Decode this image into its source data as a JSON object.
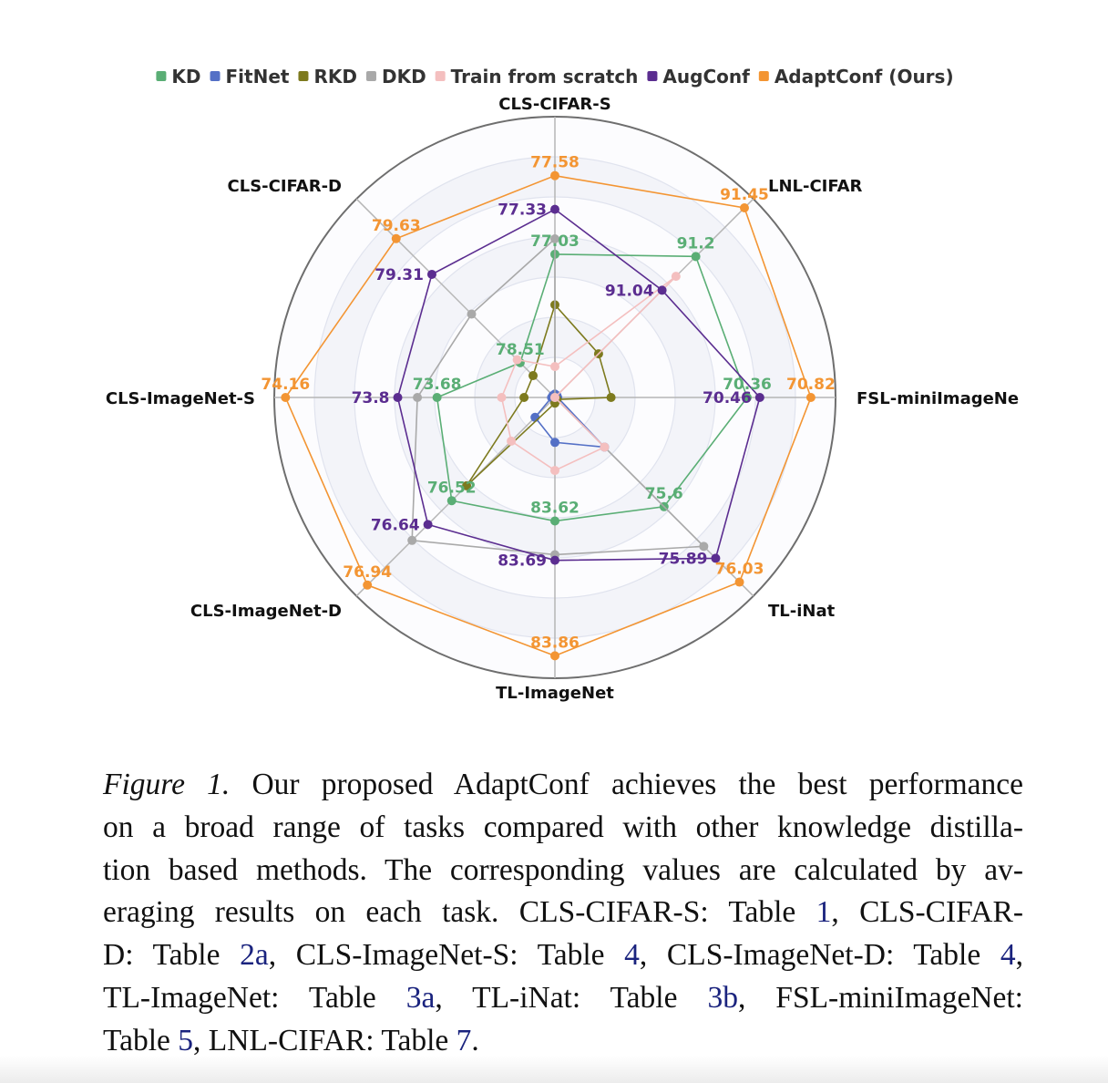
{
  "chart_data": {
    "type": "radar",
    "grid": true,
    "legend_position": "top",
    "axes": [
      "CLS-CIFAR-S",
      "LNL-CIFAR",
      "FSL-miniImageNe",
      "TL-iNat",
      "TL-ImageNet",
      "CLS-ImageNet-D",
      "CLS-ImageNet-S",
      "CLS-CIFAR-D"
    ],
    "series": [
      {
        "name": "KD",
        "color": "#5aae75",
        "values": [
          "77.03",
          "91.2",
          "70.36",
          "75.6",
          "83.62",
          "76.52",
          "73.68",
          "78.51"
        ],
        "relative_score": [
          0.51,
          0.71,
          0.685,
          0.55,
          0.44,
          0.52,
          0.42,
          0.175
        ]
      },
      {
        "name": "FitNet",
        "color": "#5470c6",
        "relative_score": [
          0.012,
          0.01,
          0.01,
          0.25,
          0.16,
          0.1,
          0.012,
          0.01
        ]
      },
      {
        "name": "RKD",
        "color": "#7d7a1e",
        "relative_score": [
          0.33,
          0.22,
          0.2,
          0.01,
          0.02,
          0.445,
          0.11,
          0.11
        ]
      },
      {
        "name": "DKD",
        "color": "#a9a9a9",
        "relative_score": [
          0.565,
          0.0,
          0.0,
          0.75,
          0.56,
          0.72,
          0.49,
          0.42
        ]
      },
      {
        "name": "Train from scratch",
        "color": "#f4bfbf",
        "relative_score": [
          0.11,
          0.61,
          0.0,
          0.25,
          0.26,
          0.22,
          0.19,
          0.19
        ]
      },
      {
        "name": "AugConf",
        "color": "#5b2d90",
        "values": [
          "77.33",
          "91.04",
          "70.46",
          "75.89",
          "83.69",
          "76.64",
          "73.8",
          "79.31"
        ],
        "relative_score": [
          0.67,
          0.54,
          0.73,
          0.81,
          0.58,
          0.64,
          0.56,
          0.62
        ]
      },
      {
        "name": "AdaptConf (Ours)",
        "color": "#f39533",
        "values": [
          "77.58",
          "91.45",
          "70.82",
          "76.03",
          "83.86",
          "76.94",
          "74.16",
          "79.63"
        ],
        "relative_score": [
          0.79,
          0.955,
          0.912,
          0.93,
          0.92,
          0.945,
          0.96,
          0.8
        ]
      }
    ]
  },
  "caption": {
    "lines": [
      [
        {
          "t": "Figure 1.",
          "style": "italic"
        },
        {
          "t": " Our proposed AdaptConf achieves the best performance"
        }
      ],
      [
        {
          "t": "on a broad range of tasks compared with other knowledge distilla-"
        }
      ],
      [
        {
          "t": "tion based methods. The corresponding values are calculated by av-"
        }
      ],
      [
        {
          "t": "eraging results on each task. CLS-CIFAR-S: Table "
        },
        {
          "t": "1",
          "style": "link"
        },
        {
          "t": ", CLS-CIFAR-"
        }
      ],
      [
        {
          "t": "D: Table "
        },
        {
          "t": "2a",
          "style": "link"
        },
        {
          "t": ", CLS-ImageNet-S: Table "
        },
        {
          "t": "4",
          "style": "link"
        },
        {
          "t": ", CLS-ImageNet-D: Table "
        },
        {
          "t": "4",
          "style": "link"
        },
        {
          "t": ","
        }
      ],
      [
        {
          "t": "TL-ImageNet: Table "
        },
        {
          "t": "3a",
          "style": "link"
        },
        {
          "t": ", TL-iNat: Table "
        },
        {
          "t": "3b",
          "style": "link"
        },
        {
          "t": ", FSL-miniImageNet:"
        }
      ],
      [
        {
          "t": "Table "
        },
        {
          "t": "5",
          "style": "link"
        },
        {
          "t": ", LNL-CIFAR: Table "
        },
        {
          "t": "7",
          "style": "link"
        },
        {
          "t": "."
        }
      ]
    ]
  }
}
